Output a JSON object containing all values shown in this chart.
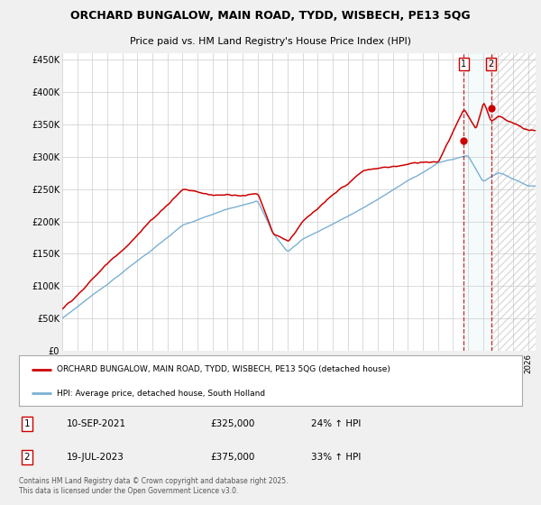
{
  "title": "ORCHARD BUNGALOW, MAIN ROAD, TYDD, WISBECH, PE13 5QG",
  "subtitle": "Price paid vs. HM Land Registry's House Price Index (HPI)",
  "legend_line1": "ORCHARD BUNGALOW, MAIN ROAD, TYDD, WISBECH, PE13 5QG (detached house)",
  "legend_line2": "HPI: Average price, detached house, South Holland",
  "ylim": [
    0,
    460000
  ],
  "yticks": [
    0,
    50000,
    100000,
    150000,
    200000,
    250000,
    300000,
    350000,
    400000,
    450000
  ],
  "ytick_labels": [
    "£0",
    "£50K",
    "£100K",
    "£150K",
    "£200K",
    "£250K",
    "£300K",
    "£350K",
    "£400K",
    "£450K"
  ],
  "red_color": "#cc0000",
  "blue_color": "#7ab0d4",
  "transaction1_date": "10-SEP-2021",
  "transaction1_price": 325000,
  "transaction1_hpi": "24% ↑ HPI",
  "transaction1_year": 2021.71,
  "transaction2_date": "19-JUL-2023",
  "transaction2_price": 375000,
  "transaction2_hpi": "33% ↑ HPI",
  "transaction2_year": 2023.54,
  "footnote": "Contains HM Land Registry data © Crown copyright and database right 2025.\nThis data is licensed under the Open Government Licence v3.0.",
  "bg_color": "#f0f0f0",
  "plot_bg_color": "#ffffff",
  "grid_color": "#cccccc",
  "hatch_start": 2023.54,
  "xmin": 1995,
  "xmax": 2026.5
}
